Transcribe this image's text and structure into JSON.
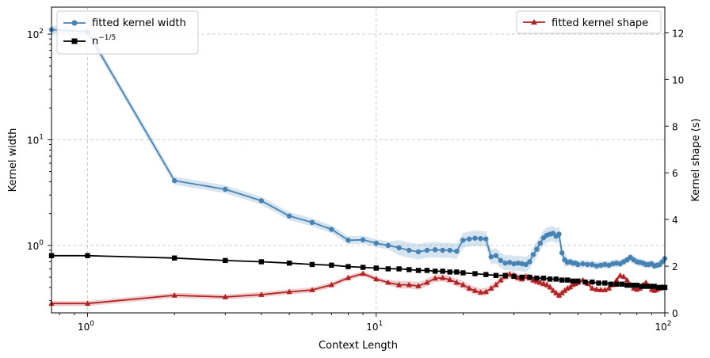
{
  "chart_data": {
    "type": "line",
    "xlabel": "Context Length",
    "ylabel_left": "Kernel width",
    "ylabel_right": "Kernel shape (s)",
    "x_scale": "log",
    "x_range": [
      0.75,
      100
    ],
    "y_left_scale": "log",
    "y_left_range": [
      0.23,
      180
    ],
    "y_right_range": [
      0,
      13.1
    ],
    "grid": true,
    "x_ticks": [
      {
        "value": 1,
        "label": "10",
        "exp": "0"
      },
      {
        "value": 10,
        "label": "10",
        "exp": "1"
      },
      {
        "value": 100,
        "label": "10",
        "exp": "2"
      }
    ],
    "y_left_ticks": [
      {
        "value": 1,
        "label": "10",
        "exp": "0"
      },
      {
        "value": 10,
        "label": "10",
        "exp": "1"
      },
      {
        "value": 100,
        "label": "10",
        "exp": "2"
      }
    ],
    "y_right_ticks": [
      {
        "value": 0,
        "label": "0"
      },
      {
        "value": 2,
        "label": "2"
      },
      {
        "value": 4,
        "label": "4"
      },
      {
        "value": 6,
        "label": "6"
      },
      {
        "value": 8,
        "label": "8"
      },
      {
        "value": 10,
        "label": "10"
      },
      {
        "value": 12,
        "label": "12"
      }
    ],
    "legend_left": [
      {
        "key": "width",
        "label": "fitted kernel width"
      },
      {
        "key": "n15",
        "label": "n",
        "sup": "−1/5"
      }
    ],
    "legend_right": [
      {
        "key": "shape",
        "label": "fitted kernel shape"
      }
    ],
    "series": {
      "width": {
        "axis": "left",
        "color": "#4682b4",
        "marker": "circle",
        "points": [
          [
            0.75,
            110
          ],
          [
            1,
            105
          ],
          [
            2,
            4.1
          ],
          [
            3,
            3.4
          ],
          [
            4,
            2.65
          ],
          [
            5,
            1.9
          ],
          [
            6,
            1.65
          ],
          [
            7,
            1.42
          ],
          [
            8,
            1.12
          ],
          [
            9,
            1.13
          ],
          [
            10,
            1.05
          ],
          [
            11,
            1.0
          ],
          [
            12,
            0.95
          ],
          [
            13,
            0.9
          ],
          [
            14,
            0.87
          ],
          [
            15,
            0.9
          ],
          [
            16,
            0.91
          ],
          [
            17,
            0.9
          ],
          [
            18,
            0.9
          ],
          [
            19,
            0.88
          ],
          [
            20,
            1.12
          ],
          [
            21,
            1.15
          ],
          [
            22,
            1.17
          ],
          [
            23,
            1.16
          ],
          [
            24,
            1.15
          ],
          [
            25,
            0.78
          ],
          [
            26,
            0.8
          ],
          [
            27,
            0.72
          ],
          [
            28,
            0.68
          ],
          [
            29,
            0.69
          ],
          [
            30,
            0.67
          ],
          [
            31,
            0.68
          ],
          [
            32,
            0.67
          ],
          [
            33,
            0.66
          ],
          [
            34,
            0.7
          ],
          [
            35,
            0.82
          ],
          [
            36,
            0.92
          ],
          [
            37,
            1.05
          ],
          [
            38,
            1.18
          ],
          [
            39,
            1.25
          ],
          [
            40,
            1.28
          ],
          [
            41,
            1.3
          ],
          [
            42,
            1.22
          ],
          [
            43,
            1.28
          ],
          [
            44,
            0.85
          ],
          [
            45,
            0.73
          ],
          [
            46,
            0.69
          ],
          [
            47,
            0.7
          ],
          [
            48,
            0.68
          ],
          [
            49,
            0.68
          ],
          [
            50,
            0.66
          ],
          [
            52,
            0.67
          ],
          [
            54,
            0.66
          ],
          [
            56,
            0.66
          ],
          [
            58,
            0.64
          ],
          [
            60,
            0.65
          ],
          [
            62,
            0.66
          ],
          [
            64,
            0.65
          ],
          [
            66,
            0.67
          ],
          [
            68,
            0.68
          ],
          [
            70,
            0.67
          ],
          [
            72,
            0.7
          ],
          [
            74,
            0.73
          ],
          [
            76,
            0.77
          ],
          [
            78,
            0.73
          ],
          [
            80,
            0.7
          ],
          [
            82,
            0.69
          ],
          [
            84,
            0.68
          ],
          [
            86,
            0.66
          ],
          [
            88,
            0.66
          ],
          [
            90,
            0.67
          ],
          [
            92,
            0.64
          ],
          [
            94,
            0.65
          ],
          [
            96,
            0.66
          ],
          [
            98,
            0.7
          ],
          [
            100,
            0.75
          ]
        ]
      },
      "n15": {
        "axis": "left",
        "color": "#000000",
        "marker": "square",
        "points": [
          [
            0.75,
            0.8
          ],
          [
            1,
            0.8
          ],
          [
            2,
            0.76
          ],
          [
            3,
            0.72
          ],
          [
            4,
            0.7
          ],
          [
            5,
            0.68
          ],
          [
            6,
            0.66
          ],
          [
            7,
            0.65
          ],
          [
            8,
            0.63
          ],
          [
            9,
            0.62
          ],
          [
            10,
            0.61
          ],
          [
            11,
            0.6
          ],
          [
            12,
            0.6
          ],
          [
            13,
            0.59
          ],
          [
            14,
            0.58
          ],
          [
            15,
            0.58
          ],
          [
            16,
            0.57
          ],
          [
            17,
            0.57
          ],
          [
            18,
            0.56
          ],
          [
            19,
            0.56
          ],
          [
            20,
            0.55
          ],
          [
            22,
            0.54
          ],
          [
            24,
            0.53
          ],
          [
            26,
            0.52
          ],
          [
            28,
            0.52
          ],
          [
            30,
            0.51
          ],
          [
            32,
            0.5
          ],
          [
            34,
            0.5
          ],
          [
            36,
            0.49
          ],
          [
            38,
            0.49
          ],
          [
            40,
            0.48
          ],
          [
            42,
            0.48
          ],
          [
            44,
            0.47
          ],
          [
            46,
            0.47
          ],
          [
            48,
            0.46
          ],
          [
            50,
            0.46
          ],
          [
            53,
            0.45
          ],
          [
            56,
            0.45
          ],
          [
            59,
            0.44
          ],
          [
            62,
            0.44
          ],
          [
            65,
            0.43
          ],
          [
            68,
            0.43
          ],
          [
            71,
            0.43
          ],
          [
            74,
            0.42
          ],
          [
            77,
            0.42
          ],
          [
            80,
            0.42
          ],
          [
            83,
            0.41
          ],
          [
            86,
            0.41
          ],
          [
            89,
            0.41
          ],
          [
            92,
            0.41
          ],
          [
            95,
            0.4
          ],
          [
            98,
            0.4
          ],
          [
            100,
            0.4
          ]
        ]
      },
      "shape": {
        "axis": "right",
        "color": "#b22222",
        "marker": "triangle",
        "points": [
          [
            0.75,
            0.4
          ],
          [
            1,
            0.4
          ],
          [
            2,
            0.75
          ],
          [
            3,
            0.68
          ],
          [
            4,
            0.78
          ],
          [
            5,
            0.9
          ],
          [
            6,
            0.98
          ],
          [
            7,
            1.2
          ],
          [
            8,
            1.5
          ],
          [
            9,
            1.68
          ],
          [
            10,
            1.45
          ],
          [
            11,
            1.3
          ],
          [
            12,
            1.2
          ],
          [
            13,
            1.2
          ],
          [
            14,
            1.15
          ],
          [
            15,
            1.3
          ],
          [
            16,
            1.48
          ],
          [
            17,
            1.5
          ],
          [
            18,
            1.42
          ],
          [
            19,
            1.3
          ],
          [
            20,
            1.2
          ],
          [
            21,
            1.05
          ],
          [
            22,
            0.95
          ],
          [
            23,
            0.88
          ],
          [
            24,
            0.9
          ],
          [
            25,
            1.05
          ],
          [
            26,
            1.2
          ],
          [
            27,
            1.4
          ],
          [
            28,
            1.55
          ],
          [
            29,
            1.65
          ],
          [
            30,
            1.6
          ],
          [
            31,
            1.5
          ],
          [
            32,
            1.45
          ],
          [
            33,
            1.55
          ],
          [
            34,
            1.5
          ],
          [
            35,
            1.4
          ],
          [
            36,
            1.35
          ],
          [
            37,
            1.3
          ],
          [
            38,
            1.25
          ],
          [
            39,
            1.2
          ],
          [
            40,
            1.1
          ],
          [
            41,
            0.95
          ],
          [
            42,
            0.85
          ],
          [
            43,
            0.75
          ],
          [
            44,
            0.85
          ],
          [
            45,
            0.95
          ],
          [
            46,
            1.05
          ],
          [
            47,
            1.1
          ],
          [
            48,
            1.2
          ],
          [
            49,
            1.25
          ],
          [
            50,
            1.3
          ],
          [
            52,
            1.4
          ],
          [
            54,
            1.25
          ],
          [
            56,
            1.05
          ],
          [
            58,
            1.0
          ],
          [
            60,
            0.98
          ],
          [
            62,
            0.98
          ],
          [
            64,
            1.05
          ],
          [
            66,
            1.2
          ],
          [
            68,
            1.4
          ],
          [
            70,
            1.6
          ],
          [
            72,
            1.55
          ],
          [
            74,
            1.4
          ],
          [
            76,
            1.2
          ],
          [
            78,
            1.05
          ],
          [
            80,
            1.0
          ],
          [
            82,
            1.05
          ],
          [
            84,
            1.2
          ],
          [
            86,
            1.3
          ],
          [
            88,
            1.15
          ],
          [
            90,
            1.0
          ],
          [
            92,
            0.95
          ],
          [
            94,
            1.0
          ],
          [
            96,
            1.05
          ],
          [
            98,
            1.1
          ],
          [
            100,
            1.1
          ]
        ]
      }
    }
  }
}
